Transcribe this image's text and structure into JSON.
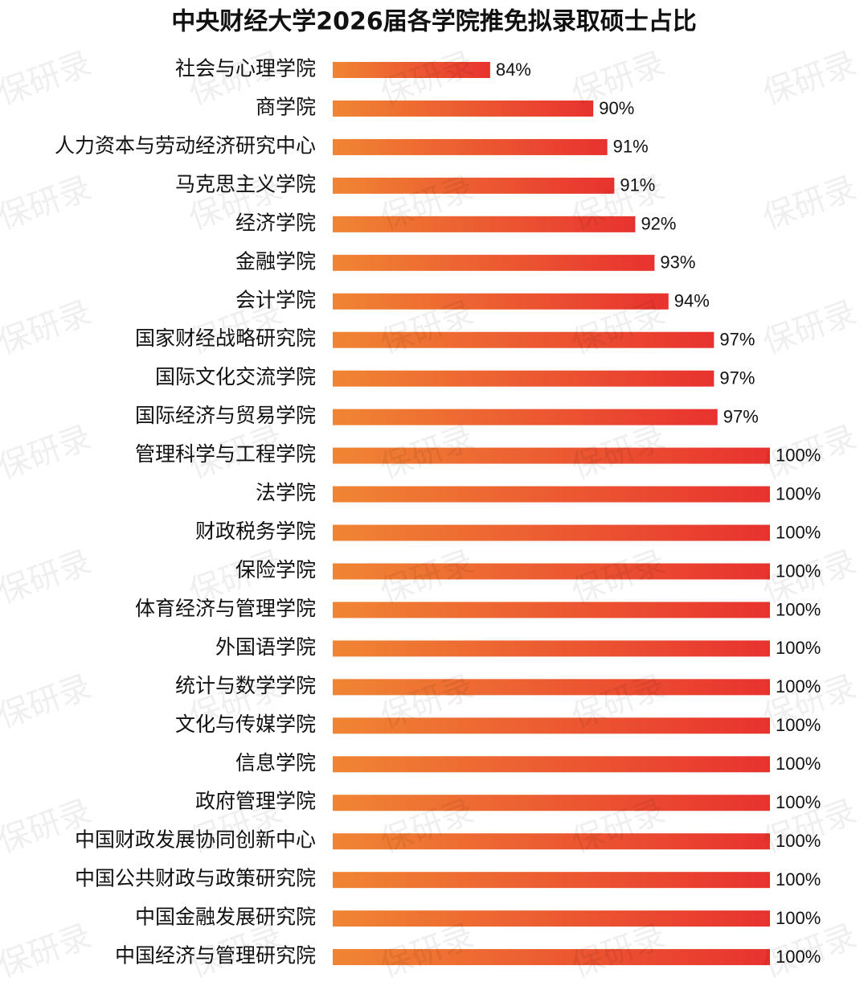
{
  "chart_data": {
    "type": "hbar",
    "title": "中央财经大学2026届各学院推免拟录取硕士占比",
    "watermark": "保研录",
    "categories": [
      "社会与心理学院",
      "商学院",
      "人力资本与劳动经济研究中心",
      "马克思主义学院",
      "经济学院",
      "金融学院",
      "会计学院",
      "国家财经战略研究院",
      "国际文化交流学院",
      "国际经济与贸易学院",
      "管理科学与工程学院",
      "法学院",
      "财政税务学院",
      "保险学院",
      "体育经济与管理学院",
      "外国语学院",
      "统计与数学学院",
      "文化与传媒学院",
      "信息学院",
      "政府管理学院",
      "中国财政发展协同创新中心",
      "中国公共财政与政策研究院",
      "中国金融发展研究院",
      "中国经济与管理研究院"
    ],
    "values": [
      84.0,
      89.9,
      90.7,
      91.1,
      92.3,
      93.4,
      94.2,
      96.8,
      96.8,
      97.0,
      100,
      100,
      100,
      100,
      100,
      100,
      100,
      100,
      100,
      100,
      100,
      100,
      100,
      100
    ],
    "value_labels": [
      "84%",
      "90%",
      "91%",
      "91%",
      "92%",
      "93%",
      "94%",
      "97%",
      "97%",
      "97%",
      "100%",
      "100%",
      "100%",
      "100%",
      "100%",
      "100%",
      "100%",
      "100%",
      "100%",
      "100%",
      "100%",
      "100%",
      "100%",
      "100%"
    ],
    "xlim": [
      75,
      100
    ],
    "color_start": "#f08533",
    "color_end": "#e8322f"
  }
}
